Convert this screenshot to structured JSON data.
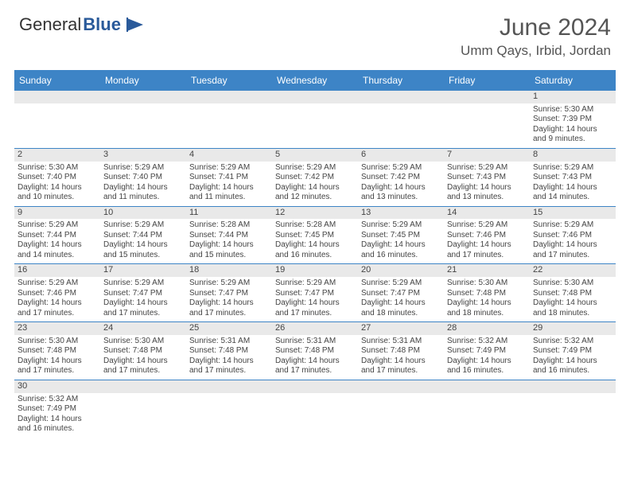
{
  "brand": {
    "part1": "General",
    "part2": "Blue"
  },
  "title": "June 2024",
  "location": "Umm Qays, Irbid, Jordan",
  "colors": {
    "header_bg": "#3d84c6",
    "header_text": "#ffffff",
    "daynum_bg": "#e9e9e9",
    "rule": "#3d84c6",
    "text": "#444444",
    "logo_accent": "#2a5a9a"
  },
  "day_names": [
    "Sunday",
    "Monday",
    "Tuesday",
    "Wednesday",
    "Thursday",
    "Friday",
    "Saturday"
  ],
  "weeks": [
    [
      null,
      null,
      null,
      null,
      null,
      null,
      {
        "n": "1",
        "sunrise": "Sunrise: 5:30 AM",
        "sunset": "Sunset: 7:39 PM",
        "daylight": "Daylight: 14 hours and 9 minutes."
      }
    ],
    [
      {
        "n": "2",
        "sunrise": "Sunrise: 5:30 AM",
        "sunset": "Sunset: 7:40 PM",
        "daylight": "Daylight: 14 hours and 10 minutes."
      },
      {
        "n": "3",
        "sunrise": "Sunrise: 5:29 AM",
        "sunset": "Sunset: 7:40 PM",
        "daylight": "Daylight: 14 hours and 11 minutes."
      },
      {
        "n": "4",
        "sunrise": "Sunrise: 5:29 AM",
        "sunset": "Sunset: 7:41 PM",
        "daylight": "Daylight: 14 hours and 11 minutes."
      },
      {
        "n": "5",
        "sunrise": "Sunrise: 5:29 AM",
        "sunset": "Sunset: 7:42 PM",
        "daylight": "Daylight: 14 hours and 12 minutes."
      },
      {
        "n": "6",
        "sunrise": "Sunrise: 5:29 AM",
        "sunset": "Sunset: 7:42 PM",
        "daylight": "Daylight: 14 hours and 13 minutes."
      },
      {
        "n": "7",
        "sunrise": "Sunrise: 5:29 AM",
        "sunset": "Sunset: 7:43 PM",
        "daylight": "Daylight: 14 hours and 13 minutes."
      },
      {
        "n": "8",
        "sunrise": "Sunrise: 5:29 AM",
        "sunset": "Sunset: 7:43 PM",
        "daylight": "Daylight: 14 hours and 14 minutes."
      }
    ],
    [
      {
        "n": "9",
        "sunrise": "Sunrise: 5:29 AM",
        "sunset": "Sunset: 7:44 PM",
        "daylight": "Daylight: 14 hours and 14 minutes."
      },
      {
        "n": "10",
        "sunrise": "Sunrise: 5:29 AM",
        "sunset": "Sunset: 7:44 PM",
        "daylight": "Daylight: 14 hours and 15 minutes."
      },
      {
        "n": "11",
        "sunrise": "Sunrise: 5:28 AM",
        "sunset": "Sunset: 7:44 PM",
        "daylight": "Daylight: 14 hours and 15 minutes."
      },
      {
        "n": "12",
        "sunrise": "Sunrise: 5:28 AM",
        "sunset": "Sunset: 7:45 PM",
        "daylight": "Daylight: 14 hours and 16 minutes."
      },
      {
        "n": "13",
        "sunrise": "Sunrise: 5:29 AM",
        "sunset": "Sunset: 7:45 PM",
        "daylight": "Daylight: 14 hours and 16 minutes."
      },
      {
        "n": "14",
        "sunrise": "Sunrise: 5:29 AM",
        "sunset": "Sunset: 7:46 PM",
        "daylight": "Daylight: 14 hours and 17 minutes."
      },
      {
        "n": "15",
        "sunrise": "Sunrise: 5:29 AM",
        "sunset": "Sunset: 7:46 PM",
        "daylight": "Daylight: 14 hours and 17 minutes."
      }
    ],
    [
      {
        "n": "16",
        "sunrise": "Sunrise: 5:29 AM",
        "sunset": "Sunset: 7:46 PM",
        "daylight": "Daylight: 14 hours and 17 minutes."
      },
      {
        "n": "17",
        "sunrise": "Sunrise: 5:29 AM",
        "sunset": "Sunset: 7:47 PM",
        "daylight": "Daylight: 14 hours and 17 minutes."
      },
      {
        "n": "18",
        "sunrise": "Sunrise: 5:29 AM",
        "sunset": "Sunset: 7:47 PM",
        "daylight": "Daylight: 14 hours and 17 minutes."
      },
      {
        "n": "19",
        "sunrise": "Sunrise: 5:29 AM",
        "sunset": "Sunset: 7:47 PM",
        "daylight": "Daylight: 14 hours and 17 minutes."
      },
      {
        "n": "20",
        "sunrise": "Sunrise: 5:29 AM",
        "sunset": "Sunset: 7:47 PM",
        "daylight": "Daylight: 14 hours and 18 minutes."
      },
      {
        "n": "21",
        "sunrise": "Sunrise: 5:30 AM",
        "sunset": "Sunset: 7:48 PM",
        "daylight": "Daylight: 14 hours and 18 minutes."
      },
      {
        "n": "22",
        "sunrise": "Sunrise: 5:30 AM",
        "sunset": "Sunset: 7:48 PM",
        "daylight": "Daylight: 14 hours and 18 minutes."
      }
    ],
    [
      {
        "n": "23",
        "sunrise": "Sunrise: 5:30 AM",
        "sunset": "Sunset: 7:48 PM",
        "daylight": "Daylight: 14 hours and 17 minutes."
      },
      {
        "n": "24",
        "sunrise": "Sunrise: 5:30 AM",
        "sunset": "Sunset: 7:48 PM",
        "daylight": "Daylight: 14 hours and 17 minutes."
      },
      {
        "n": "25",
        "sunrise": "Sunrise: 5:31 AM",
        "sunset": "Sunset: 7:48 PM",
        "daylight": "Daylight: 14 hours and 17 minutes."
      },
      {
        "n": "26",
        "sunrise": "Sunrise: 5:31 AM",
        "sunset": "Sunset: 7:48 PM",
        "daylight": "Daylight: 14 hours and 17 minutes."
      },
      {
        "n": "27",
        "sunrise": "Sunrise: 5:31 AM",
        "sunset": "Sunset: 7:48 PM",
        "daylight": "Daylight: 14 hours and 17 minutes."
      },
      {
        "n": "28",
        "sunrise": "Sunrise: 5:32 AM",
        "sunset": "Sunset: 7:49 PM",
        "daylight": "Daylight: 14 hours and 16 minutes."
      },
      {
        "n": "29",
        "sunrise": "Sunrise: 5:32 AM",
        "sunset": "Sunset: 7:49 PM",
        "daylight": "Daylight: 14 hours and 16 minutes."
      }
    ],
    [
      {
        "n": "30",
        "sunrise": "Sunrise: 5:32 AM",
        "sunset": "Sunset: 7:49 PM",
        "daylight": "Daylight: 14 hours and 16 minutes."
      },
      null,
      null,
      null,
      null,
      null,
      null
    ]
  ]
}
